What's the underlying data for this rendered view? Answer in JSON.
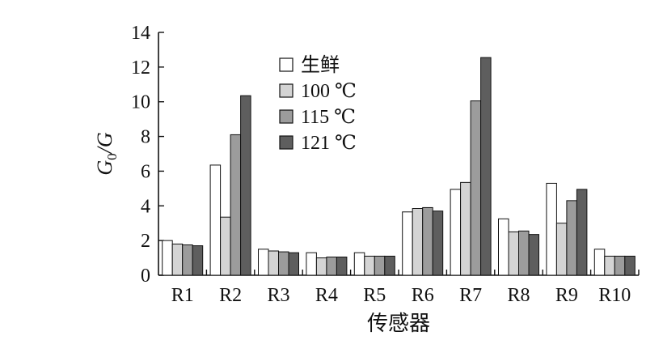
{
  "chart_data": {
    "type": "bar",
    "categories": [
      "R1",
      "R2",
      "R3",
      "R4",
      "R5",
      "R6",
      "R7",
      "R8",
      "R9",
      "R10"
    ],
    "series": [
      {
        "name": "生鲜",
        "color": "#ffffff",
        "values": [
          2.0,
          6.35,
          1.5,
          1.3,
          1.3,
          3.65,
          4.95,
          3.25,
          5.3,
          1.5
        ]
      },
      {
        "name": "100 ℃",
        "color": "#d4d4d4",
        "values": [
          1.8,
          3.35,
          1.4,
          1.0,
          1.1,
          3.85,
          5.35,
          2.5,
          3.0,
          1.1
        ]
      },
      {
        "name": "115 ℃",
        "color": "#9c9c9c",
        "values": [
          1.75,
          8.1,
          1.35,
          1.05,
          1.1,
          3.9,
          10.05,
          2.55,
          4.3,
          1.1
        ]
      },
      {
        "name": "121 ℃",
        "color": "#5e5e5e",
        "values": [
          1.7,
          10.35,
          1.3,
          1.05,
          1.1,
          3.7,
          12.55,
          2.35,
          4.95,
          1.1
        ]
      }
    ],
    "xlabel": "传感器",
    "ylabel": "G0/G",
    "ylim": [
      0,
      14
    ],
    "yticks": [
      0,
      2,
      4,
      6,
      8,
      10,
      12,
      14
    ],
    "grid": false,
    "legend": "top-center"
  }
}
